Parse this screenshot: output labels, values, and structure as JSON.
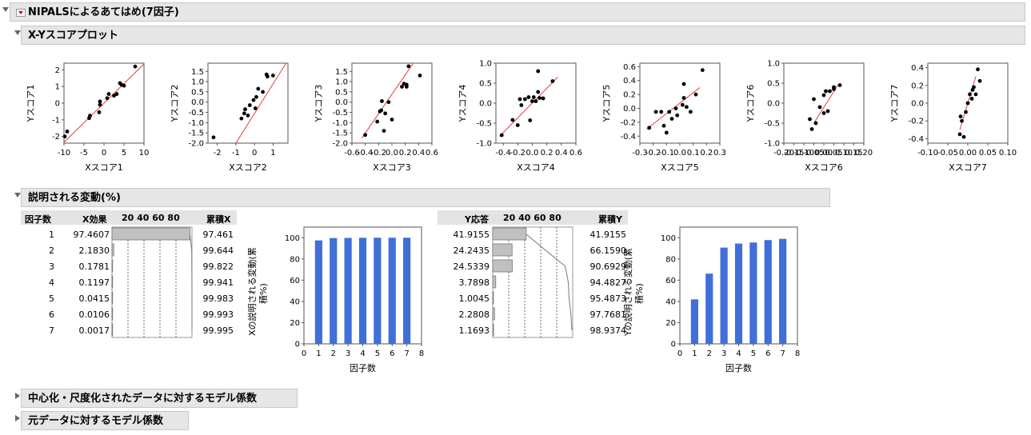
{
  "main_title": "NIPALSによるあてはめ(7因子)",
  "scores": {
    "title": "X-Yスコアプロット",
    "plots": [
      {
        "xlabel": "Xスコア1",
        "ylabel": "Yスコア1",
        "xticks": [
          "-10",
          "-5",
          "0",
          "5",
          "10"
        ],
        "yticks": [
          "2",
          "1",
          "0",
          "-1",
          "-2"
        ],
        "xlim": [
          -10,
          10
        ],
        "ylim": [
          -2.4,
          2.4
        ],
        "points": [
          [
            -9.8,
            -2.0
          ],
          [
            -9.2,
            -1.7
          ],
          [
            -3.7,
            -0.9
          ],
          [
            -3.5,
            -0.75
          ],
          [
            -1.2,
            -0.55
          ],
          [
            -1.0,
            -0.1
          ],
          [
            -1.0,
            0.1
          ],
          [
            0.8,
            0.3
          ],
          [
            1.2,
            0.55
          ],
          [
            2.5,
            0.45
          ],
          [
            3.2,
            0.55
          ],
          [
            4.0,
            1.2
          ],
          [
            4.4,
            1.1
          ],
          [
            5.0,
            1.05
          ],
          [
            7.8,
            2.2
          ]
        ],
        "line": [
          [
            -10,
            -2.35
          ],
          [
            10,
            2.35
          ]
        ]
      },
      {
        "xlabel": "Xスコア2",
        "ylabel": "Yスコア2",
        "xticks": [
          "-2",
          "-1",
          "0",
          "1"
        ],
        "yticks": [
          "1.5",
          "1.0",
          "0.5",
          "0.0",
          "-0.5",
          "-1.0",
          "-1.5",
          "-2.0"
        ],
        "xlim": [
          -2.5,
          1.8
        ],
        "ylim": [
          -2.0,
          1.9
        ],
        "points": [
          [
            -2.2,
            -1.72
          ],
          [
            -0.7,
            -0.8
          ],
          [
            -0.55,
            -0.55
          ],
          [
            -0.5,
            -0.35
          ],
          [
            -0.35,
            -0.65
          ],
          [
            -0.25,
            -0.15
          ],
          [
            -0.05,
            0.1
          ],
          [
            0.05,
            -0.3
          ],
          [
            0.1,
            0.25
          ],
          [
            0.2,
            0.65
          ],
          [
            0.45,
            0.5
          ],
          [
            0.65,
            1.35
          ],
          [
            0.7,
            1.25
          ],
          [
            1.0,
            1.3
          ]
        ],
        "line": [
          [
            -1.0,
            -2.0
          ],
          [
            1.7,
            1.9
          ]
        ]
      },
      {
        "xlabel": "Xスコア3",
        "ylabel": "Yスコア3",
        "xticks": [
          "-0.6",
          "-0.4",
          "-0.2",
          "0.0",
          "0.2",
          "0.4",
          "0.6"
        ],
        "yticks": [
          "1.5",
          "1.0",
          "0.5",
          "0.0",
          "-0.5",
          "-1.0",
          "-1.5",
          "-2.0"
        ],
        "xlim": [
          -0.6,
          0.6
        ],
        "ylim": [
          -2.0,
          1.9
        ],
        "points": [
          [
            -0.4,
            -1.6
          ],
          [
            -0.22,
            -0.95
          ],
          [
            -0.18,
            -0.45
          ],
          [
            -0.16,
            -0.4
          ],
          [
            -0.12,
            -1.4
          ],
          [
            -0.15,
            0.05
          ],
          [
            -0.1,
            -0.55
          ],
          [
            -0.05,
            0.0
          ],
          [
            0.0,
            -0.85
          ],
          [
            0.15,
            0.75
          ],
          [
            0.18,
            0.9
          ],
          [
            0.22,
            0.85
          ],
          [
            0.22,
            0.75
          ],
          [
            0.25,
            1.75
          ],
          [
            0.42,
            1.3
          ]
        ],
        "line": [
          [
            -0.45,
            -1.75
          ],
          [
            0.32,
            1.9
          ]
        ]
      },
      {
        "xlabel": "Xスコア4",
        "ylabel": "Yスコア4",
        "xticks": [
          "-0.4",
          "-0.2",
          "0.0",
          "0.2",
          "0.4",
          "0.6"
        ],
        "yticks": [
          "1.0",
          "0.5",
          "0.0",
          "-0.5",
          "-1.0"
        ],
        "xlim": [
          -0.5,
          0.6
        ],
        "ylim": [
          -1.0,
          1.0
        ],
        "points": [
          [
            -0.42,
            -0.8
          ],
          [
            -0.27,
            -0.42
          ],
          [
            -0.2,
            -0.55
          ],
          [
            -0.17,
            0.1
          ],
          [
            -0.15,
            -0.05
          ],
          [
            -0.1,
            0.1
          ],
          [
            -0.05,
            0.15
          ],
          [
            -0.03,
            -0.43
          ],
          [
            0.0,
            0.05
          ],
          [
            0.02,
            0.15
          ],
          [
            0.05,
            0.05
          ],
          [
            0.08,
            0.28
          ],
          [
            0.1,
            0.13
          ],
          [
            0.15,
            0.12
          ],
          [
            0.08,
            0.8
          ],
          [
            0.28,
            0.55
          ]
        ],
        "line": [
          [
            -0.45,
            -0.83
          ],
          [
            0.35,
            0.65
          ]
        ]
      },
      {
        "xlabel": "Xスコア5",
        "ylabel": "Yスコア5",
        "xticks": [
          "-0.3",
          "-0.2",
          "-0.1",
          "0.0",
          "0.1",
          "0.2",
          "0.3"
        ],
        "yticks": [
          "0.6",
          "0.4",
          "0.2",
          "0.0",
          "-0.2",
          "-0.4"
        ],
        "xlim": [
          -0.3,
          0.3
        ],
        "ylim": [
          -0.5,
          0.65
        ],
        "points": [
          [
            -0.23,
            -0.28
          ],
          [
            -0.18,
            -0.05
          ],
          [
            -0.14,
            -0.05
          ],
          [
            -0.12,
            -0.25
          ],
          [
            -0.1,
            -0.35
          ],
          [
            -0.08,
            -0.05
          ],
          [
            -0.06,
            -0.15
          ],
          [
            -0.03,
            0.0
          ],
          [
            -0.02,
            -0.1
          ],
          [
            0.02,
            0.05
          ],
          [
            0.03,
            0.15
          ],
          [
            0.03,
            0.35
          ],
          [
            0.05,
            0.02
          ],
          [
            0.08,
            -0.05
          ],
          [
            0.12,
            0.2
          ],
          [
            0.17,
            0.55
          ]
        ],
        "line": [
          [
            -0.25,
            -0.3
          ],
          [
            0.15,
            0.3
          ]
        ]
      },
      {
        "xlabel": "Xスコア6",
        "ylabel": "Yスコア6",
        "xticks": [
          "-0.20",
          "-0.15",
          "-0.10",
          "-0.05",
          "0.00",
          "0.05",
          "0.10",
          "0.15",
          "0.20"
        ],
        "yticks": [
          "1.0",
          "0.5",
          "0.0",
          "-0.5",
          "-1.0"
        ],
        "xlim": [
          -0.2,
          0.2
        ],
        "ylim": [
          -1.0,
          1.0
        ],
        "points": [
          [
            -0.07,
            -0.4
          ],
          [
            -0.06,
            -0.65
          ],
          [
            -0.05,
            0.1
          ],
          [
            -0.04,
            -0.5
          ],
          [
            -0.02,
            -0.1
          ],
          [
            0.0,
            -0.25
          ],
          [
            0.0,
            0.2
          ],
          [
            0.01,
            0.3
          ],
          [
            0.02,
            -0.2
          ],
          [
            0.03,
            0.3
          ],
          [
            0.05,
            0.35
          ],
          [
            0.05,
            0.4
          ],
          [
            0.08,
            0.45
          ]
        ],
        "line": [
          [
            -0.05,
            -0.5
          ],
          [
            0.07,
            0.45
          ]
        ]
      },
      {
        "xlabel": "Xスコア7",
        "ylabel": "Yスコア7",
        "xticks": [
          "-0.10",
          "-0.05",
          "0.00",
          "0.05",
          "0.10"
        ],
        "yticks": [
          "0.4",
          "0.2",
          "0.0",
          "-0.2",
          "-0.4"
        ],
        "xlim": [
          -0.1,
          0.1
        ],
        "ylim": [
          -0.45,
          0.45
        ],
        "points": [
          [
            -0.02,
            -0.35
          ],
          [
            -0.018,
            -0.15
          ],
          [
            -0.015,
            -0.2
          ],
          [
            -0.01,
            -0.38
          ],
          [
            -0.005,
            -0.1
          ],
          [
            0.0,
            0.0
          ],
          [
            0.005,
            0.1
          ],
          [
            0.01,
            0.05
          ],
          [
            0.012,
            0.15
          ],
          [
            0.015,
            0.18
          ],
          [
            0.02,
            0.1
          ],
          [
            0.025,
            0.38
          ],
          [
            0.03,
            0.25
          ]
        ],
        "line": [
          [
            -0.02,
            -0.3
          ],
          [
            0.02,
            0.3
          ]
        ]
      }
    ]
  },
  "variance": {
    "title": "説明される変動(%)",
    "x_table": {
      "headers": {
        "factor": "因子数",
        "effect": "X効果",
        "scale": "20 40 60 80",
        "cum": "累積X"
      },
      "rows": [
        {
          "factor": "1",
          "effect": "97.4607",
          "cum": "97.461",
          "pct": 97.4607,
          "cumpct": 97.461
        },
        {
          "factor": "2",
          "effect": "2.1830",
          "cum": "99.644",
          "pct": 2.183,
          "cumpct": 99.644
        },
        {
          "factor": "3",
          "effect": "0.1781",
          "cum": "99.822",
          "pct": 0.1781,
          "cumpct": 99.822
        },
        {
          "factor": "4",
          "effect": "0.1197",
          "cum": "99.941",
          "pct": 0.1197,
          "cumpct": 99.941
        },
        {
          "factor": "5",
          "effect": "0.0415",
          "cum": "99.983",
          "pct": 0.0415,
          "cumpct": 99.983
        },
        {
          "factor": "6",
          "effect": "0.0106",
          "cum": "99.993",
          "pct": 0.0106,
          "cumpct": 99.993
        },
        {
          "factor": "7",
          "effect": "0.0017",
          "cum": "99.995",
          "pct": 0.0017,
          "cumpct": 99.995
        }
      ]
    },
    "y_table": {
      "headers": {
        "effect": "Y応答",
        "scale": "20 40 60 80",
        "cum": "累積Y"
      },
      "rows": [
        {
          "effect": "41.9155",
          "cum": "41.9155",
          "pct": 41.9155,
          "cumpct": 41.9155
        },
        {
          "effect": "24.2435",
          "cum": "66.1590",
          "pct": 24.2435,
          "cumpct": 66.159
        },
        {
          "effect": "24.5339",
          "cum": "90.6929",
          "pct": 24.5339,
          "cumpct": 90.6929
        },
        {
          "effect": "3.7898",
          "cum": "94.4827",
          "pct": 3.7898,
          "cumpct": 94.4827
        },
        {
          "effect": "1.0045",
          "cum": "95.4873",
          "pct": 1.0045,
          "cumpct": 95.4873
        },
        {
          "effect": "2.2808",
          "cum": "97.7681",
          "pct": 2.2808,
          "cumpct": 97.7681
        },
        {
          "effect": "1.1693",
          "cum": "98.9374",
          "pct": 1.1693,
          "cumpct": 98.9374
        }
      ]
    }
  },
  "chart_data": [
    {
      "type": "bar",
      "categories": [
        "1",
        "2",
        "3",
        "4",
        "5",
        "6",
        "7"
      ],
      "values": [
        97.461,
        99.644,
        99.822,
        99.941,
        99.983,
        99.993,
        99.995
      ],
      "xlabel": "因子数",
      "ylabel": "Xの説明される変動(累積%)",
      "xlim": [
        0,
        8
      ],
      "ylim": [
        0,
        110
      ],
      "xticks": [
        "0",
        "1",
        "2",
        "3",
        "4",
        "5",
        "6",
        "7",
        "8"
      ],
      "yticks": [
        "0",
        "20",
        "40",
        "60",
        "80",
        "100"
      ],
      "bar_color": "#3f6fd8"
    },
    {
      "type": "bar",
      "categories": [
        "1",
        "2",
        "3",
        "4",
        "5",
        "6",
        "7"
      ],
      "values": [
        41.9155,
        66.159,
        90.6929,
        94.4827,
        95.4873,
        97.7681,
        98.9374
      ],
      "xlabel": "因子数",
      "ylabel": "Yの説明される変動(累積%)",
      "xlim": [
        0,
        8
      ],
      "ylim": [
        0,
        110
      ],
      "xticks": [
        "0",
        "1",
        "2",
        "3",
        "4",
        "5",
        "6",
        "7",
        "8"
      ],
      "yticks": [
        "0",
        "20",
        "40",
        "60",
        "80",
        "100"
      ],
      "bar_color": "#3f6fd8"
    }
  ],
  "sections": {
    "coef_centered": "中心化・尺度化されたデータに対するモデル係数",
    "coef_original": "元データに対するモデル係数"
  },
  "colors": {
    "fit_line": "#e04040",
    "bar": "#3f6fd8",
    "header_bg": "#e6e6e6",
    "table_bar": "#c0c0c0"
  }
}
